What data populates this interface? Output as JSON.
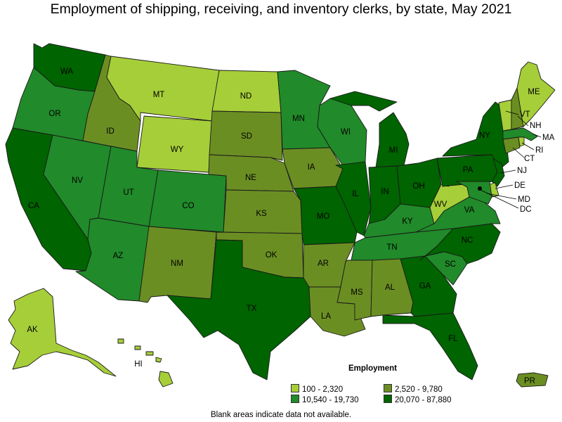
{
  "title": "Employment of shipping, receiving, and inventory clerks, by state, May 2021",
  "legend": {
    "title": "Employment",
    "items": [
      {
        "label": "100 - 2,320",
        "color": "#a6ce39"
      },
      {
        "label": "2,520 - 9,780",
        "color": "#6b8e23"
      },
      {
        "label": "10,540 - 19,730",
        "color": "#218a2a"
      },
      {
        "label": "20,070 - 87,880",
        "color": "#006400"
      }
    ]
  },
  "note": "Blank areas indicate data not available.",
  "states": {
    "WA": {
      "label": "WA",
      "bin": 3
    },
    "OR": {
      "label": "OR",
      "bin": 2
    },
    "CA": {
      "label": "CA",
      "bin": 3
    },
    "NV": {
      "label": "NV",
      "bin": 2
    },
    "ID": {
      "label": "ID",
      "bin": 1
    },
    "MT": {
      "label": "MT",
      "bin": 0
    },
    "WY": {
      "label": "WY",
      "bin": 0
    },
    "UT": {
      "label": "UT",
      "bin": 2
    },
    "AZ": {
      "label": "AZ",
      "bin": 2
    },
    "CO": {
      "label": "CO",
      "bin": 2
    },
    "NM": {
      "label": "NM",
      "bin": 1
    },
    "ND": {
      "label": "ND",
      "bin": 0
    },
    "SD": {
      "label": "SD",
      "bin": 1
    },
    "NE": {
      "label": "NE",
      "bin": 1
    },
    "KS": {
      "label": "KS",
      "bin": 1
    },
    "OK": {
      "label": "OK",
      "bin": 1
    },
    "TX": {
      "label": "TX",
      "bin": 3
    },
    "MN": {
      "label": "MN",
      "bin": 2
    },
    "IA": {
      "label": "IA",
      "bin": 1
    },
    "MO": {
      "label": "MO",
      "bin": 3
    },
    "AR": {
      "label": "AR",
      "bin": 1
    },
    "LA": {
      "label": "LA",
      "bin": 1
    },
    "WI": {
      "label": "WI",
      "bin": 2
    },
    "IL": {
      "label": "IL",
      "bin": 3
    },
    "MI": {
      "label": "MI",
      "bin": 3
    },
    "IN": {
      "label": "IN",
      "bin": 3
    },
    "OH": {
      "label": "OH",
      "bin": 3
    },
    "KY": {
      "label": "KY",
      "bin": 2
    },
    "TN": {
      "label": "TN",
      "bin": 2
    },
    "MS": {
      "label": "MS",
      "bin": 1
    },
    "AL": {
      "label": "AL",
      "bin": 1
    },
    "GA": {
      "label": "GA",
      "bin": 3
    },
    "FL": {
      "label": "FL",
      "bin": 3
    },
    "SC": {
      "label": "SC",
      "bin": 2
    },
    "NC": {
      "label": "NC",
      "bin": 3
    },
    "VA": {
      "label": "VA",
      "bin": 2
    },
    "WV": {
      "label": "WV",
      "bin": 0
    },
    "PA": {
      "label": "PA",
      "bin": 3
    },
    "NY": {
      "label": "NY",
      "bin": 3
    },
    "NJ": {
      "label": "NJ",
      "bin": 3
    },
    "DE": {
      "label": "DE",
      "bin": 0
    },
    "MD": {
      "label": "MD",
      "bin": 2
    },
    "DC": {
      "label": "DC",
      "bin": 0
    },
    "CT": {
      "label": "CT",
      "bin": 1
    },
    "RI": {
      "label": "RI",
      "bin": 0
    },
    "MA": {
      "label": "MA",
      "bin": 2
    },
    "VT": {
      "label": "VT",
      "bin": 0
    },
    "NH": {
      "label": "NH",
      "bin": 1
    },
    "ME": {
      "label": "ME",
      "bin": 0
    },
    "AK": {
      "label": "AK",
      "bin": 0
    },
    "HI": {
      "label": "HI",
      "bin": 0
    },
    "PR": {
      "label": "PR",
      "bin": 1
    }
  }
}
